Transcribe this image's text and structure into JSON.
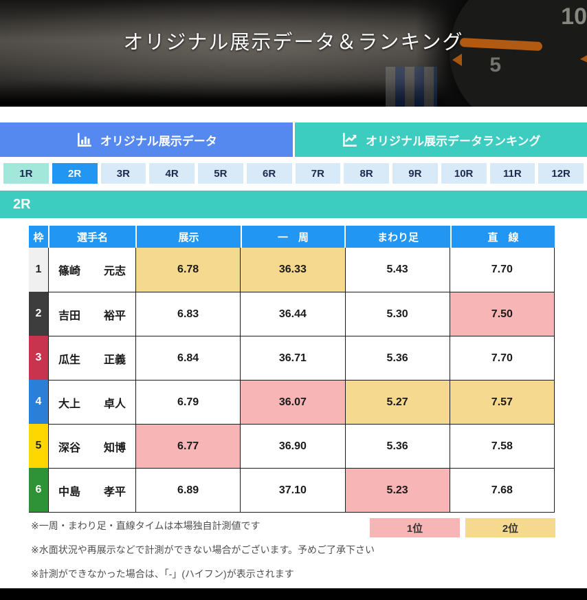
{
  "banner": {
    "title": "オリジナル展示データ＆ランキング",
    "board_number_top": "10",
    "board_number_bottom": "5"
  },
  "tabs": [
    {
      "label": "オリジナル展示データ",
      "icon": "bar-chart-icon",
      "active": true,
      "color": "#5589EF"
    },
    {
      "label": "オリジナル展示データランキング",
      "icon": "line-chart-icon",
      "active": false,
      "color": "#3DCCC0"
    }
  ],
  "race_selector": {
    "races": [
      {
        "label": "1R",
        "state": "visited"
      },
      {
        "label": "2R",
        "state": "selected"
      },
      {
        "label": "3R",
        "state": "default"
      },
      {
        "label": "4R",
        "state": "default"
      },
      {
        "label": "5R",
        "state": "default"
      },
      {
        "label": "6R",
        "state": "default"
      },
      {
        "label": "7R",
        "state": "default"
      },
      {
        "label": "8R",
        "state": "default"
      },
      {
        "label": "9R",
        "state": "default"
      },
      {
        "label": "10R",
        "state": "default"
      },
      {
        "label": "11R",
        "state": "default"
      },
      {
        "label": "12R",
        "state": "default"
      }
    ]
  },
  "section": {
    "race_label": "2R"
  },
  "table": {
    "headers": [
      "枠",
      "選手名",
      "展示",
      "一　周",
      "まわり足",
      "直　線"
    ],
    "rows": [
      {
        "frame": "1",
        "frame_bg": "#F0F0F0",
        "frame_fg": "#222222",
        "racer_last": "篠崎",
        "racer_first": "元志",
        "values": [
          {
            "v": "6.78",
            "rank": 2
          },
          {
            "v": "36.33",
            "rank": 2
          },
          {
            "v": "5.43",
            "rank": 0
          },
          {
            "v": "7.70",
            "rank": 0
          }
        ]
      },
      {
        "frame": "2",
        "frame_bg": "#3D3D3D",
        "frame_fg": "#FFFFFF",
        "racer_last": "吉田",
        "racer_first": "裕平",
        "values": [
          {
            "v": "6.83",
            "rank": 0
          },
          {
            "v": "36.44",
            "rank": 0
          },
          {
            "v": "5.30",
            "rank": 0
          },
          {
            "v": "7.50",
            "rank": 1
          }
        ]
      },
      {
        "frame": "3",
        "frame_bg": "#C8344E",
        "frame_fg": "#FFFFFF",
        "racer_last": "瓜生",
        "racer_first": "正義",
        "values": [
          {
            "v": "6.84",
            "rank": 0
          },
          {
            "v": "36.71",
            "rank": 0
          },
          {
            "v": "5.36",
            "rank": 0
          },
          {
            "v": "7.70",
            "rank": 0
          }
        ]
      },
      {
        "frame": "4",
        "frame_bg": "#2C7FD6",
        "frame_fg": "#FFFFFF",
        "racer_last": "大上",
        "racer_first": "卓人",
        "values": [
          {
            "v": "6.79",
            "rank": 0
          },
          {
            "v": "36.07",
            "rank": 1
          },
          {
            "v": "5.27",
            "rank": 2
          },
          {
            "v": "7.57",
            "rank": 2
          }
        ]
      },
      {
        "frame": "5",
        "frame_bg": "#FFD700",
        "frame_fg": "#222222",
        "racer_last": "深谷",
        "racer_first": "知博",
        "values": [
          {
            "v": "6.77",
            "rank": 1
          },
          {
            "v": "36.90",
            "rank": 0
          },
          {
            "v": "5.36",
            "rank": 0
          },
          {
            "v": "7.58",
            "rank": 0
          }
        ]
      },
      {
        "frame": "6",
        "frame_bg": "#2E9237",
        "frame_fg": "#FFFFFF",
        "racer_last": "中島",
        "racer_first": "孝平",
        "values": [
          {
            "v": "6.89",
            "rank": 0
          },
          {
            "v": "37.10",
            "rank": 0
          },
          {
            "v": "5.23",
            "rank": 1
          },
          {
            "v": "7.68",
            "rank": 0
          }
        ]
      }
    ]
  },
  "legend": [
    {
      "label": "1位",
      "color": "#F8B5B5"
    },
    {
      "label": "2位",
      "color": "#F5D98E"
    }
  ],
  "notes": [
    "※一周・まわり足・直線タイムは本場独自計測値です",
    "※水面状況や再展示などで計測ができない場合がございます。予めご了承下さい",
    "※計測ができなかった場合は、「-」(ハイフン)が表示されます"
  ],
  "colors": {
    "tab_blue": "#5589EF",
    "tab_teal": "#3DCCC0",
    "selected_race_blue": "#2196F3",
    "race_default_bg": "#D8E9F8",
    "race_visited_bg": "#A3E7DA",
    "table_header_blue": "#2196F3",
    "rank1_pink": "#F8B5B5",
    "rank2_yellow": "#F5D98E"
  }
}
